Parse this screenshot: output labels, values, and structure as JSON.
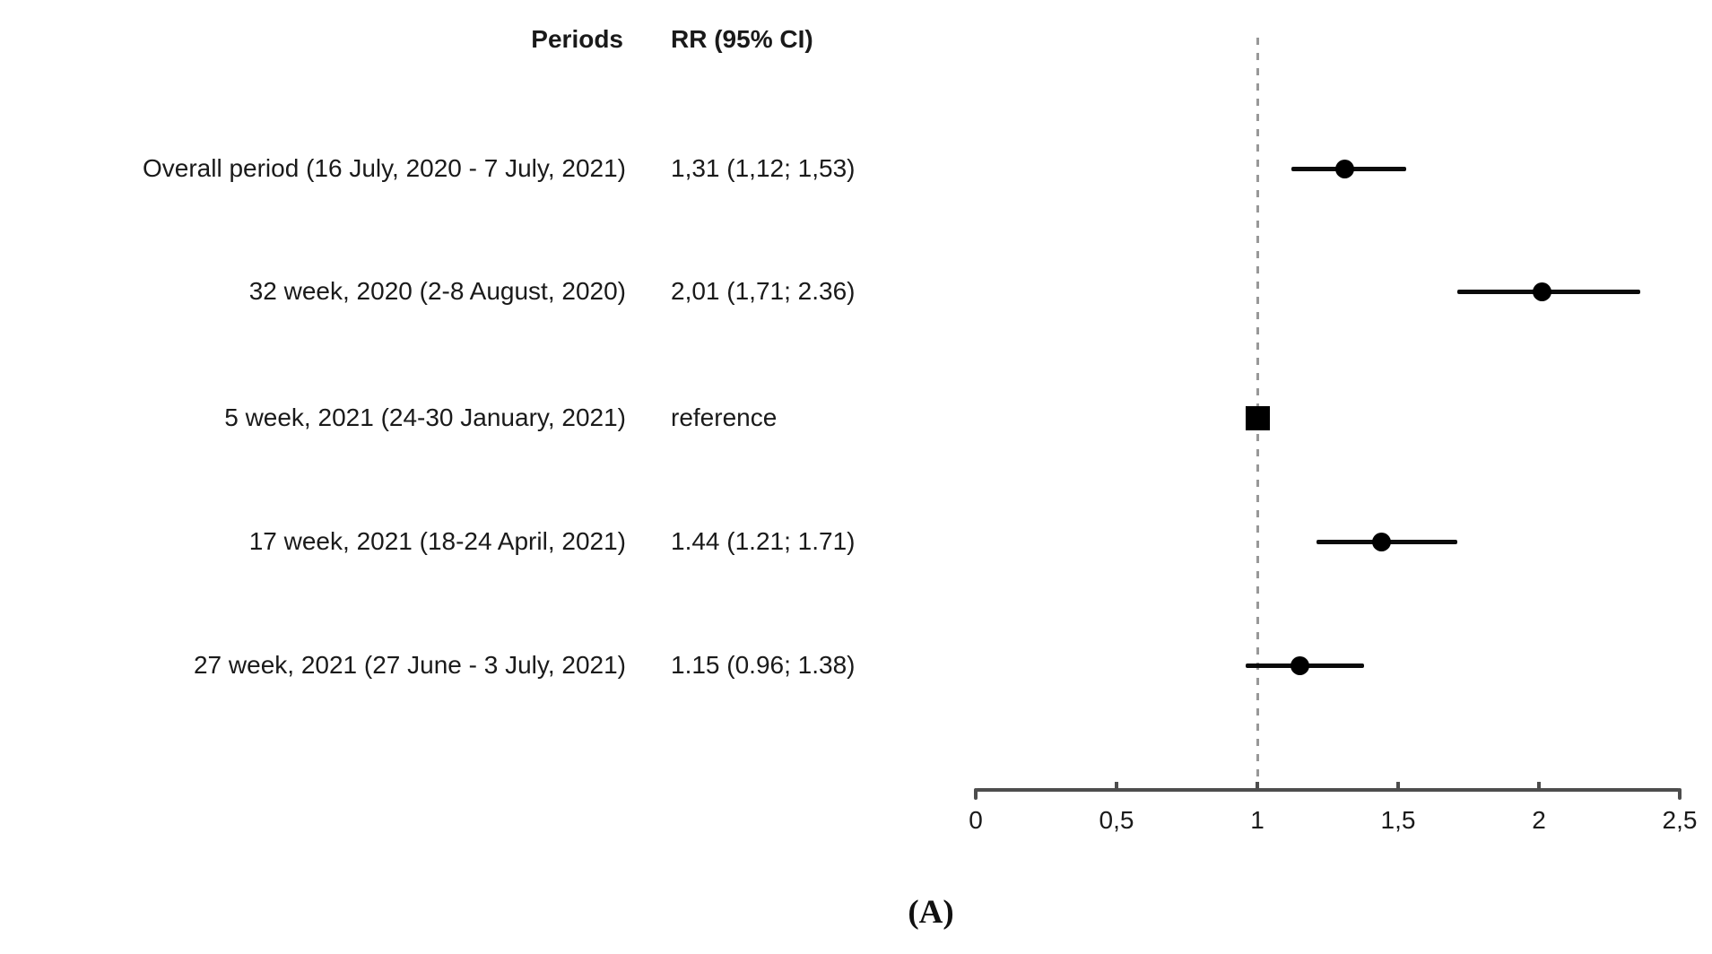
{
  "table": {
    "header_periods": "Periods",
    "header_rr": "RR (95% CI)"
  },
  "caption": "(A)",
  "chart_data": {
    "type": "scatter",
    "subtype": "forest-plot",
    "title": "",
    "xlabel": "",
    "ylabel": "",
    "legend": "none",
    "grid": false,
    "reference_line_x": 1,
    "x_axis": {
      "min": 0,
      "max": 2.5,
      "ticks": [
        {
          "value": 0,
          "label": "0"
        },
        {
          "value": 0.5,
          "label": "0,5"
        },
        {
          "value": 1,
          "label": "1"
        },
        {
          "value": 1.5,
          "label": "1,5"
        },
        {
          "value": 2,
          "label": "2"
        },
        {
          "value": 2.5,
          "label": "2,5"
        }
      ]
    },
    "rows": [
      {
        "label": "Overall period (16 July, 2020 - 7 July, 2021)",
        "rr_text": "1,31 (1,12; 1,53)",
        "estimate": 1.31,
        "ci_low": 1.12,
        "ci_high": 1.53,
        "marker": "circle"
      },
      {
        "label": "32 week, 2020 (2-8 August, 2020)",
        "rr_text": "2,01 (1,71; 2.36)",
        "estimate": 2.01,
        "ci_low": 1.71,
        "ci_high": 2.36,
        "marker": "circle"
      },
      {
        "label": "5 week, 2021 (24-30 January, 2021)",
        "rr_text": "reference",
        "estimate": 1.0,
        "ci_low": null,
        "ci_high": null,
        "marker": "square"
      },
      {
        "label": "17 week, 2021 (18-24 April, 2021)",
        "rr_text": "1.44 (1.21; 1.71)",
        "estimate": 1.44,
        "ci_low": 1.21,
        "ci_high": 1.71,
        "marker": "circle"
      },
      {
        "label": "27 week, 2021 (27 June - 3 July, 2021)",
        "rr_text": "1.15 (0.96; 1.38)",
        "estimate": 1.15,
        "ci_low": 0.96,
        "ci_high": 1.38,
        "marker": "circle"
      }
    ],
    "colors": {
      "marker": "#000000",
      "ci_line": "#0b0b0b",
      "axis": "#4d4d4d",
      "reference_line": "#989898",
      "text": "#1a1a1a",
      "background": "#ffffff"
    }
  }
}
